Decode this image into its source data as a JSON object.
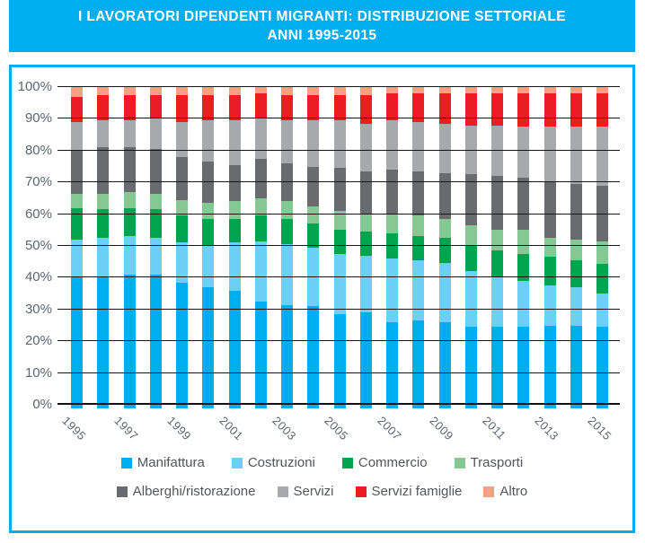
{
  "header": {
    "title_line1": "I LAVORATORI DIPENDENTI MIGRANTI: DISTRIBUZIONE SETTORIALE",
    "title_line2": "ANNI 1995-2015",
    "banner_color": "#00AEEF",
    "title_color": "#FFFFFF"
  },
  "frame": {
    "border_color": "#00AEEF"
  },
  "chart_data": {
    "type": "bar",
    "stacked": true,
    "unit": "percent",
    "title": "I lavoratori dipendenti migranti: distribuzione settoriale, anni 1995-2015",
    "xlabel": "",
    "ylabel": "",
    "ylim": [
      0,
      100
    ],
    "grid": true,
    "gridline_color": "#151515",
    "axis_label_color": "#5C6670",
    "legend_position": "bottom",
    "categories": [
      "1995",
      "1996",
      "1997",
      "1998",
      "1999",
      "2000",
      "2001",
      "2002",
      "2003",
      "2004",
      "2005",
      "2006",
      "2007",
      "2008",
      "2009",
      "2010",
      "2011",
      "2012",
      "2013",
      "2014",
      "2015"
    ],
    "x_ticks_shown": [
      "1995",
      "1997",
      "1999",
      "2001",
      "2003",
      "2005",
      "2007",
      "2009",
      "2011",
      "2013",
      "2015"
    ],
    "y_ticks": [
      "0%",
      "10%",
      "20%",
      "30%",
      "40%",
      "50%",
      "60%",
      "70%",
      "80%",
      "90%",
      "100%"
    ],
    "series": [
      {
        "name": "Manifattura",
        "color": "#00AEEF",
        "values": [
          40.5,
          40.5,
          41,
          41,
          38.5,
          37,
          36,
          32.5,
          31.5,
          31,
          28.5,
          29,
          26,
          26.5,
          26,
          24.5,
          24.5,
          24.5,
          25,
          25,
          24.5
        ]
      },
      {
        "name": "Costruzioni",
        "color": "#6DCFF6",
        "values": [
          11.5,
          12,
          12,
          11.5,
          12.5,
          13,
          15,
          19,
          19,
          18.5,
          19,
          18,
          20,
          19,
          18.5,
          17.5,
          15.5,
          14.5,
          12.5,
          12,
          10.5
        ]
      },
      {
        "name": "Commercio",
        "color": "#00A44F",
        "values": [
          10,
          9,
          9,
          9,
          8.5,
          8.5,
          7.5,
          8,
          8,
          7.5,
          7.5,
          7.5,
          8,
          7.5,
          8,
          8,
          8.5,
          8.5,
          9,
          8.5,
          9.5
        ]
      },
      {
        "name": "Trasporti",
        "color": "#85C894",
        "values": [
          4.5,
          5,
          5,
          5,
          5,
          5,
          5.5,
          5.5,
          5.5,
          5.5,
          6,
          5.5,
          6,
          6.5,
          6,
          6.5,
          6.5,
          7.5,
          6,
          6.5,
          7
        ]
      },
      {
        "name": "Alberghi/ristorazione",
        "color": "#6A6B6E",
        "values": [
          13.5,
          14.5,
          14,
          14,
          13.5,
          13,
          11.5,
          12.5,
          12,
          12.5,
          13.5,
          13.5,
          14,
          14,
          14.5,
          16,
          17,
          16.5,
          17.5,
          17.5,
          17.5
        ]
      },
      {
        "name": "Servizi",
        "color": "#A7A9AC",
        "values": [
          9,
          8.5,
          8.5,
          9.5,
          11,
          13,
          14,
          12.5,
          13.5,
          14.5,
          15,
          15,
          15.5,
          15.5,
          15.5,
          15.5,
          16,
          16,
          17.5,
          18,
          18.5
        ]
      },
      {
        "name": "Servizi famiglie",
        "color": "#EC1C24",
        "values": [
          8,
          8,
          8,
          7.5,
          8.5,
          8,
          8,
          8,
          8,
          8,
          8,
          9,
          8.5,
          9,
          9.5,
          10,
          10,
          10.5,
          10.5,
          10.5,
          10.5
        ]
      },
      {
        "name": "Altro",
        "color": "#F4A183",
        "values": [
          3,
          2.5,
          2.5,
          2.5,
          2.5,
          2.5,
          2.5,
          2,
          2.5,
          2.5,
          2.5,
          2.5,
          2,
          2,
          2,
          2,
          2,
          2,
          2,
          2,
          2
        ]
      }
    ]
  }
}
